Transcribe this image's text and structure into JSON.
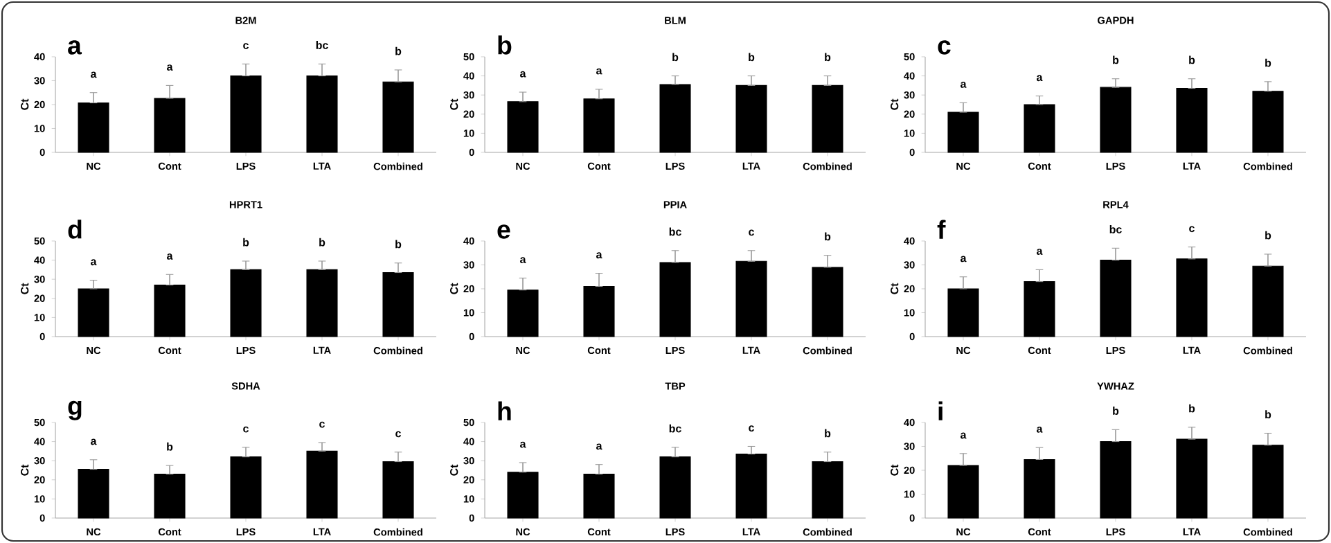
{
  "chart_data": [
    {
      "type": "bar",
      "title": "B2M",
      "ylabel": "Ct",
      "categories": [
        "NC",
        "Cont",
        "LPS",
        "LTA",
        "Combined"
      ],
      "values": [
        20.7,
        22.6,
        32,
        32,
        29.5
      ],
      "errors": [
        [
          20.7,
          25
        ],
        [
          22.6,
          28
        ],
        [
          32,
          37
        ],
        [
          32,
          37
        ],
        [
          29.5,
          34.5
        ]
      ],
      "color": "#000000",
      "ylim": [
        0,
        40
      ],
      "yticks": [
        0,
        10,
        20,
        30,
        40
      ],
      "annotations": [
        "a",
        "a",
        "a",
        "c",
        "bc",
        "b"
      ]
    },
    {
      "type": "bar",
      "title": "BLM",
      "ylabel": "Ct",
      "categories": [
        "NC",
        "Cont",
        "LPS",
        "LTA",
        "Combined"
      ],
      "values": [
        26.5,
        28,
        35.5,
        35,
        35
      ],
      "errors": [
        [
          26.5,
          31.5
        ],
        [
          28,
          33
        ],
        [
          35.5,
          40
        ],
        [
          35,
          40
        ],
        [
          35,
          40
        ]
      ],
      "color": "#000000",
      "ylim": [
        0,
        50
      ],
      "yticks": [
        0,
        10,
        20,
        30,
        40,
        50
      ],
      "annotations": [
        "b",
        "a",
        "a",
        "b",
        "b",
        "b"
      ]
    },
    {
      "type": "bar",
      "title": "GAPDH",
      "ylabel": "Ct",
      "categories": [
        "NC",
        "Cont",
        "LPS",
        "LTA",
        "Combined"
      ],
      "values": [
        21,
        25,
        34,
        33.5,
        32
      ],
      "errors": [
        [
          21,
          26
        ],
        [
          25,
          29.5
        ],
        [
          34,
          38.5
        ],
        [
          33.5,
          38.5
        ],
        [
          32,
          37
        ]
      ],
      "color": "#000000",
      "ylim": [
        0,
        50
      ],
      "yticks": [
        0,
        10,
        20,
        30,
        40,
        50
      ],
      "annotations": [
        "c",
        "a",
        "a",
        "b",
        "b",
        "b"
      ]
    },
    {
      "type": "bar",
      "title": "HPRT1",
      "ylabel": "Ct",
      "categories": [
        "NC",
        "Cont",
        "LPS",
        "LTA",
        "Combined"
      ],
      "values": [
        25,
        27,
        35,
        35,
        33.5
      ],
      "errors": [
        [
          25,
          29.5
        ],
        [
          27,
          32.5
        ],
        [
          35,
          39.5
        ],
        [
          35,
          39.5
        ],
        [
          33.5,
          38.5
        ]
      ],
      "color": "#000000",
      "ylim": [
        0,
        50
      ],
      "yticks": [
        0,
        10,
        20,
        30,
        40,
        50
      ],
      "annotations": [
        "d",
        "a",
        "a",
        "b",
        "b",
        "b"
      ]
    },
    {
      "type": "bar",
      "title": "PPIA",
      "ylabel": "Ct",
      "categories": [
        "NC",
        "Cont",
        "LPS",
        "LTA",
        "Combined"
      ],
      "values": [
        19.5,
        21,
        31,
        31.5,
        29
      ],
      "errors": [
        [
          19.5,
          24.5
        ],
        [
          21,
          26.5
        ],
        [
          31,
          36
        ],
        [
          31.5,
          36
        ],
        [
          29,
          34
        ]
      ],
      "color": "#000000",
      "ylim": [
        0,
        40
      ],
      "yticks": [
        0,
        10,
        20,
        30,
        40
      ],
      "annotations": [
        "e",
        "a",
        "a",
        "bc",
        "c",
        "b"
      ]
    },
    {
      "type": "bar",
      "title": "RPL4",
      "ylabel": "Ct",
      "categories": [
        "NC",
        "Cont",
        "LPS",
        "LTA",
        "Combined"
      ],
      "values": [
        20,
        23,
        32,
        32.5,
        29.5
      ],
      "errors": [
        [
          20,
          25
        ],
        [
          23,
          28
        ],
        [
          32,
          37
        ],
        [
          32.5,
          37.5
        ],
        [
          29.5,
          34.5
        ]
      ],
      "color": "#000000",
      "ylim": [
        0,
        40
      ],
      "yticks": [
        0,
        10,
        20,
        30,
        40
      ],
      "annotations": [
        "f",
        "a",
        "a",
        "bc",
        "c",
        "b"
      ]
    },
    {
      "type": "bar",
      "title": "SDHA",
      "ylabel": "Ct",
      "categories": [
        "NC",
        "Cont",
        "LPS",
        "LTA",
        "Combined"
      ],
      "values": [
        25.5,
        23,
        32,
        35,
        29.5
      ],
      "errors": [
        [
          25.5,
          30.5
        ],
        [
          23,
          27.5
        ],
        [
          32,
          37
        ],
        [
          35,
          39.5
        ],
        [
          29.5,
          34.5
        ]
      ],
      "color": "#000000",
      "ylim": [
        0,
        50
      ],
      "yticks": [
        0,
        10,
        20,
        30,
        40,
        50
      ],
      "annotations": [
        "g",
        "a",
        "b",
        "c",
        "c",
        "c"
      ]
    },
    {
      "type": "bar",
      "title": "TBP",
      "ylabel": "Ct",
      "categories": [
        "NC",
        "Cont",
        "LPS",
        "LTA",
        "Combined"
      ],
      "values": [
        24,
        23,
        32,
        33.5,
        29.5
      ],
      "errors": [
        [
          24,
          29
        ],
        [
          23,
          28
        ],
        [
          32,
          37
        ],
        [
          33.5,
          37.5
        ],
        [
          29.5,
          34.5
        ]
      ],
      "color": "#000000",
      "ylim": [
        0,
        50
      ],
      "yticks": [
        0,
        10,
        20,
        30,
        40,
        50
      ],
      "annotations": [
        "h",
        "a",
        "a",
        "bc",
        "c",
        "b"
      ]
    },
    {
      "type": "bar",
      "title": "YWHAZ",
      "ylabel": "Ct",
      "categories": [
        "NC",
        "Cont",
        "LPS",
        "LTA",
        "Combined"
      ],
      "values": [
        22,
        24.5,
        32,
        33,
        30.5
      ],
      "errors": [
        [
          22,
          27
        ],
        [
          24.5,
          29.5
        ],
        [
          32,
          37
        ],
        [
          33,
          38
        ],
        [
          30.5,
          35.5
        ]
      ],
      "color": "#000000",
      "ylim": [
        0,
        40
      ],
      "yticks": [
        0,
        10,
        20,
        30,
        40
      ],
      "annotations": [
        "i",
        "a",
        "a",
        "b",
        "b",
        "b"
      ]
    }
  ]
}
